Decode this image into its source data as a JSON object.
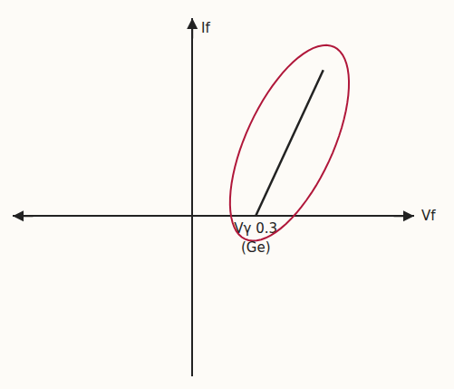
{
  "chart_data": {
    "type": "line",
    "x_label": "Vf",
    "y_label": "If",
    "series": [
      {
        "name": "Ge",
        "color": "#222222",
        "x": [
          0.3,
          0.62
        ],
        "values": [
          0,
          1.55
        ]
      }
    ],
    "xlim": [
      -0.85,
      1.05
    ],
    "xticks": [
      {
        "value": 0.3,
        "label": "Vγ 0.3"
      }
    ],
    "ylim": [
      -1.7,
      2.1
    ],
    "yticks": [],
    "annotations": [
      {
        "text": "(Ge)",
        "x": 0.3
      }
    ],
    "tick_labels": "x",
    "grid": false
  }
}
